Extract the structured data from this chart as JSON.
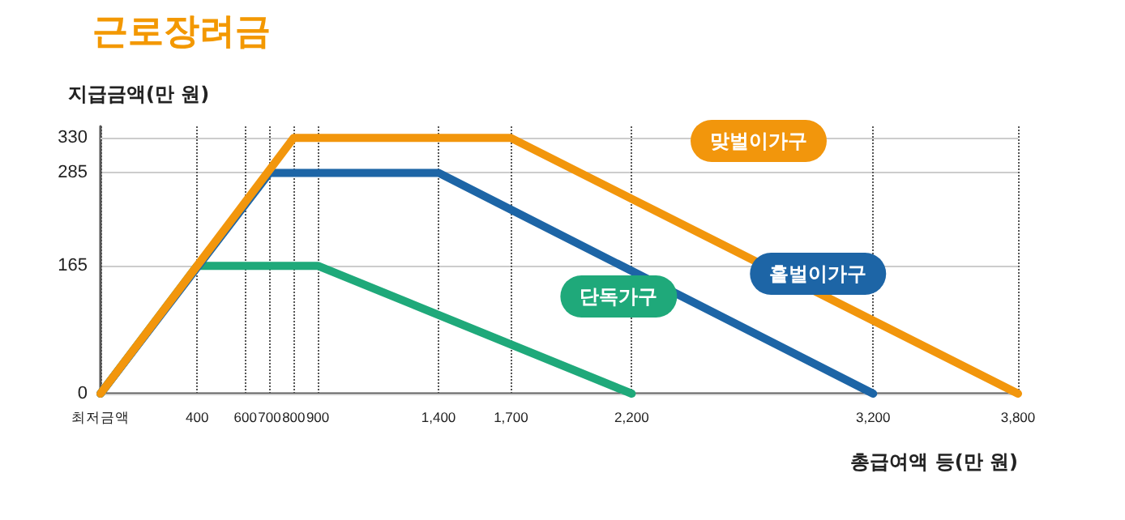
{
  "chart_data": {
    "type": "line",
    "title": "근로장려금",
    "ylabel": "지급금액(만 원)",
    "xlabel": "총급여액 등(만 원)",
    "xlim": [
      0,
      3800
    ],
    "xticks": [
      {
        "value": 0,
        "label": "최저금액"
      },
      400,
      600,
      700,
      800,
      900,
      {
        "value": 1400,
        "label": "1,400"
      },
      {
        "value": 1700,
        "label": "1,700"
      },
      {
        "value": 2200,
        "label": "2,200"
      },
      {
        "value": 3200,
        "label": "3,200"
      },
      {
        "value": 3800,
        "label": "3,800"
      }
    ],
    "ylim": [
      0,
      345
    ],
    "yticks": [
      0,
      165,
      285,
      330
    ],
    "grid": true,
    "legend": false,
    "marker": "none",
    "line_style": "solid",
    "series": [
      {
        "name": "단독가구",
        "color": "#1fa97a",
        "x": [
          0,
          400,
          900,
          2200
        ],
        "values": [
          0,
          165,
          165,
          0
        ]
      },
      {
        "name": "홑벌이가구",
        "color": "#1d65a6",
        "x": [
          0,
          700,
          1400,
          3200
        ],
        "values": [
          0,
          285,
          285,
          0
        ]
      },
      {
        "name": "맞벌이가구",
        "color": "#f2960c",
        "x": [
          0,
          800,
          1700,
          3800
        ],
        "values": [
          0,
          330,
          330,
          0
        ]
      }
    ]
  }
}
